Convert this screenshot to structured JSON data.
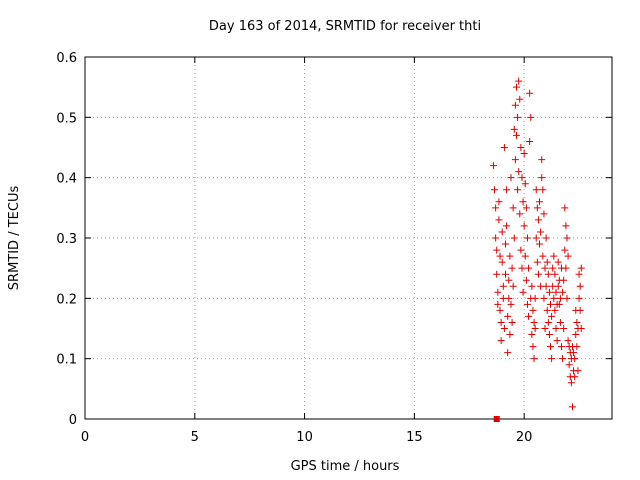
{
  "chart_data": {
    "type": "scatter",
    "title": "Day 163 of 2014, SRMTID for receiver thti",
    "xlabel": "GPS time / hours",
    "ylabel": "SRMTID / TECUs",
    "xlim": [
      0,
      24
    ],
    "ylim": [
      0,
      0.6
    ],
    "xticks": [
      0,
      5,
      10,
      15,
      20
    ],
    "xtick_labels": [
      "0",
      "5",
      "10",
      "15",
      "20"
    ],
    "yticks": [
      0,
      0.1,
      0.2,
      0.3,
      0.4,
      0.5,
      0.6
    ],
    "ytick_labels": [
      "0",
      "0.1",
      "0.2",
      "0.3",
      "0.4",
      "0.5",
      "0.6"
    ],
    "grid": true,
    "marker": "plus",
    "color": "#e00000",
    "special_points": [
      {
        "x": 18.75,
        "y": 0.0,
        "marker": "square"
      }
    ],
    "series": [
      {
        "name": "SRMTID",
        "points": [
          [
            18.6,
            0.42
          ],
          [
            18.65,
            0.38
          ],
          [
            18.7,
            0.35
          ],
          [
            18.7,
            0.3
          ],
          [
            18.75,
            0.28
          ],
          [
            18.75,
            0.24
          ],
          [
            18.8,
            0.21
          ],
          [
            18.8,
            0.19
          ],
          [
            18.85,
            0.33
          ],
          [
            18.85,
            0.36
          ],
          [
            18.9,
            0.27
          ],
          [
            18.9,
            0.18
          ],
          [
            18.95,
            0.16
          ],
          [
            18.95,
            0.13
          ],
          [
            19.0,
            0.31
          ],
          [
            19.0,
            0.26
          ],
          [
            19.05,
            0.22
          ],
          [
            19.05,
            0.2
          ],
          [
            19.1,
            0.45
          ],
          [
            19.1,
            0.15
          ],
          [
            19.15,
            0.29
          ],
          [
            19.15,
            0.24
          ],
          [
            19.2,
            0.38
          ],
          [
            19.2,
            0.32
          ],
          [
            19.25,
            0.17
          ],
          [
            19.25,
            0.11
          ],
          [
            19.3,
            0.23
          ],
          [
            19.3,
            0.2
          ],
          [
            19.35,
            0.27
          ],
          [
            19.35,
            0.14
          ],
          [
            19.4,
            0.4
          ],
          [
            19.4,
            0.19
          ],
          [
            19.45,
            0.25
          ],
          [
            19.45,
            0.16
          ],
          [
            19.5,
            0.35
          ],
          [
            19.5,
            0.22
          ],
          [
            19.55,
            0.48
          ],
          [
            19.55,
            0.3
          ],
          [
            19.6,
            0.52
          ],
          [
            19.6,
            0.43
          ],
          [
            19.65,
            0.55
          ],
          [
            19.65,
            0.47
          ],
          [
            19.7,
            0.5
          ],
          [
            19.7,
            0.38
          ],
          [
            19.75,
            0.56
          ],
          [
            19.75,
            0.41
          ],
          [
            19.8,
            0.53
          ],
          [
            19.8,
            0.34
          ],
          [
            19.85,
            0.45
          ],
          [
            19.85,
            0.28
          ],
          [
            19.9,
            0.4
          ],
          [
            19.9,
            0.25
          ],
          [
            19.95,
            0.36
          ],
          [
            19.95,
            0.21
          ],
          [
            20.0,
            0.44
          ],
          [
            20.0,
            0.32
          ],
          [
            20.05,
            0.39
          ],
          [
            20.05,
            0.27
          ],
          [
            20.1,
            0.35
          ],
          [
            20.1,
            0.23
          ],
          [
            20.15,
            0.3
          ],
          [
            20.15,
            0.19
          ],
          [
            20.2,
            0.25
          ],
          [
            20.2,
            0.17
          ],
          [
            20.25,
            0.54
          ],
          [
            20.25,
            0.46
          ],
          [
            20.3,
            0.5
          ],
          [
            20.3,
            0.2
          ],
          [
            20.35,
            0.22
          ],
          [
            20.35,
            0.14
          ],
          [
            20.4,
            0.18
          ],
          [
            20.4,
            0.12
          ],
          [
            20.45,
            0.16
          ],
          [
            20.45,
            0.1
          ],
          [
            20.5,
            0.15
          ],
          [
            20.5,
            0.2
          ],
          [
            20.55,
            0.38
          ],
          [
            20.55,
            0.3
          ],
          [
            20.6,
            0.35
          ],
          [
            20.6,
            0.26
          ],
          [
            20.65,
            0.33
          ],
          [
            20.65,
            0.24
          ],
          [
            20.7,
            0.36
          ],
          [
            20.7,
            0.29
          ],
          [
            20.75,
            0.31
          ],
          [
            20.75,
            0.22
          ],
          [
            20.8,
            0.43
          ],
          [
            20.8,
            0.4
          ],
          [
            20.85,
            0.38
          ],
          [
            20.85,
            0.27
          ],
          [
            20.9,
            0.34
          ],
          [
            20.9,
            0.2
          ],
          [
            20.95,
            0.25
          ],
          [
            20.95,
            0.15
          ],
          [
            21.0,
            0.3
          ],
          [
            21.0,
            0.22
          ],
          [
            21.05,
            0.26
          ],
          [
            21.05,
            0.18
          ],
          [
            21.1,
            0.24
          ],
          [
            21.1,
            0.16
          ],
          [
            21.15,
            0.21
          ],
          [
            21.15,
            0.14
          ],
          [
            21.2,
            0.19
          ],
          [
            21.2,
            0.12
          ],
          [
            21.25,
            0.17
          ],
          [
            21.25,
            0.1
          ],
          [
            21.3,
            0.22
          ],
          [
            21.3,
            0.25
          ],
          [
            21.35,
            0.27
          ],
          [
            21.35,
            0.2
          ],
          [
            21.4,
            0.24
          ],
          [
            21.4,
            0.18
          ],
          [
            21.45,
            0.21
          ],
          [
            21.45,
            0.15
          ],
          [
            21.5,
            0.19
          ],
          [
            21.5,
            0.13
          ],
          [
            21.55,
            0.26
          ],
          [
            21.55,
            0.22
          ],
          [
            21.6,
            0.23
          ],
          [
            21.6,
            0.19
          ],
          [
            21.65,
            0.2
          ],
          [
            21.65,
            0.16
          ],
          [
            21.7,
            0.25
          ],
          [
            21.7,
            0.12
          ],
          [
            21.75,
            0.21
          ],
          [
            21.75,
            0.1
          ],
          [
            21.8,
            0.23
          ],
          [
            21.8,
            0.15
          ],
          [
            21.85,
            0.35
          ],
          [
            21.85,
            0.28
          ],
          [
            21.9,
            0.32
          ],
          [
            21.9,
            0.25
          ],
          [
            21.95,
            0.3
          ],
          [
            21.95,
            0.2
          ],
          [
            22.0,
            0.27
          ],
          [
            22.0,
            0.13
          ],
          [
            22.05,
            0.12
          ],
          [
            22.05,
            0.09
          ],
          [
            22.1,
            0.11
          ],
          [
            22.1,
            0.07
          ],
          [
            22.15,
            0.1
          ],
          [
            22.15,
            0.06
          ],
          [
            22.2,
            0.12
          ],
          [
            22.2,
            0.02
          ],
          [
            22.25,
            0.11
          ],
          [
            22.25,
            0.08
          ],
          [
            22.3,
            0.1
          ],
          [
            22.3,
            0.07
          ],
          [
            22.35,
            0.18
          ],
          [
            22.35,
            0.14
          ],
          [
            22.4,
            0.16
          ],
          [
            22.4,
            0.12
          ],
          [
            22.45,
            0.15
          ],
          [
            22.45,
            0.08
          ],
          [
            22.5,
            0.24
          ],
          [
            22.5,
            0.2
          ],
          [
            22.55,
            0.22
          ],
          [
            22.55,
            0.18
          ],
          [
            22.6,
            0.25
          ],
          [
            22.6,
            0.15
          ]
        ]
      }
    ]
  }
}
